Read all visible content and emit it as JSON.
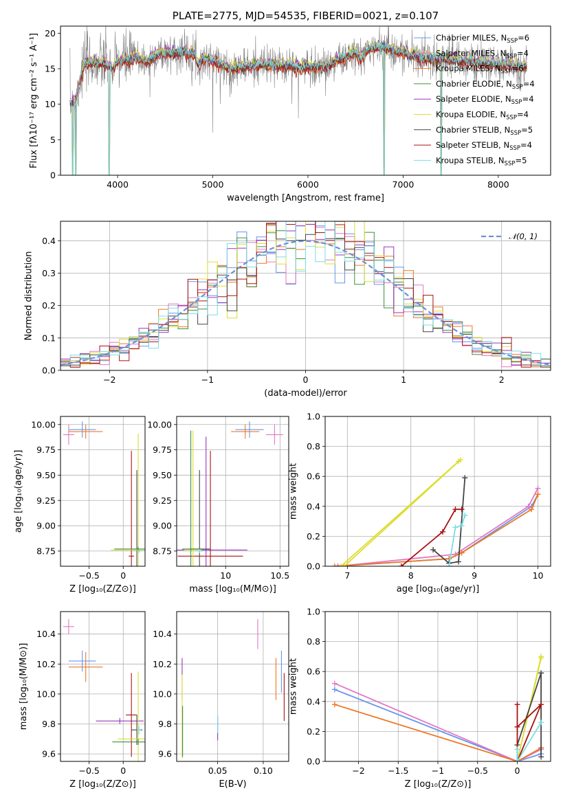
{
  "palette": {
    "Chabrier MILES": "#6495ED",
    "Salpeter MILES": "#E377C2",
    "Kroupa MILES": "#EE7722",
    "Chabrier ELODIE": "#3C8F3C",
    "Salpeter ELODIE": "#9933BB",
    "Kroupa ELODIE": "#DDDD33",
    "Chabrier STELIB": "#444444",
    "Salpeter STELIB": "#AA1111",
    "Kroupa STELIB": "#77DDE7"
  },
  "chart_data": [
    {
      "id": "spectrum",
      "type": "line",
      "title": "PLATE=2775, MJD=54535, FIBERID=0021, z=0.107",
      "xlabel": "wavelength [Angstrom, rest frame]",
      "ylabel": "Flux [fλ10⁻¹⁷ erg cm⁻² s⁻¹ A⁻¹]",
      "xlim": [
        3400,
        8550
      ],
      "ylim": [
        0,
        21
      ],
      "xticks": [
        4000,
        5000,
        6000,
        7000,
        8000
      ],
      "yticks": [
        0,
        5,
        10,
        15,
        20
      ],
      "grid": false,
      "legend_position": "top-right",
      "data": {
        "name": "data",
        "color": "#808080"
      },
      "legend": [
        {
          "name": "Chabrier MILES",
          "label": "Chabrier MILES, N",
          "sub": "SSP",
          "tail": "=6"
        },
        {
          "name": "Salpeter MILES",
          "label": "Salpeter MILES, N",
          "sub": "SSP",
          "tail": "=4"
        },
        {
          "name": "Kroupa MILES",
          "label": "Kroupa MILES, N",
          "sub": "SSP",
          "tail": "=6"
        },
        {
          "name": "Chabrier ELODIE",
          "label": "Chabrier ELODIE, N",
          "sub": "SSP",
          "tail": "=4"
        },
        {
          "name": "Salpeter ELODIE",
          "label": "Salpeter ELODIE, N",
          "sub": "SSP",
          "tail": "=4"
        },
        {
          "name": "Kroupa ELODIE",
          "label": "Kroupa ELODIE, N",
          "sub": "SSP",
          "tail": "=4"
        },
        {
          "name": "Chabrier STELIB",
          "label": "Chabrier STELIB, N",
          "sub": "SSP",
          "tail": "=5"
        },
        {
          "name": "Salpeter STELIB",
          "label": "Salpeter STELIB, N",
          "sub": "SSP",
          "tail": "=4"
        },
        {
          "name": "Kroupa STELIB",
          "label": "Kroupa STELIB, N",
          "sub": "SSP",
          "tail": "=5"
        }
      ],
      "continuum": [
        [
          3500,
          10.2
        ],
        [
          3560,
          10.6
        ],
        [
          3600,
          13.2
        ],
        [
          3650,
          15.8
        ],
        [
          3700,
          15.9
        ],
        [
          3800,
          15.7
        ],
        [
          3900,
          15.6
        ],
        [
          3950,
          14.8
        ],
        [
          4000,
          16.0
        ],
        [
          4100,
          16.2
        ],
        [
          4200,
          16.6
        ],
        [
          4300,
          15.9
        ],
        [
          4400,
          16.9
        ],
        [
          4500,
          17.2
        ],
        [
          4600,
          17.3
        ],
        [
          4700,
          17.4
        ],
        [
          4800,
          17.1
        ],
        [
          4850,
          15.6
        ],
        [
          4900,
          16.4
        ],
        [
          5000,
          16.1
        ],
        [
          5100,
          15.6
        ],
        [
          5180,
          14.9
        ],
        [
          5300,
          15.3
        ],
        [
          5400,
          15.3
        ],
        [
          5500,
          15.6
        ],
        [
          5600,
          15.5
        ],
        [
          5700,
          15.4
        ],
        [
          5800,
          15.5
        ],
        [
          5900,
          15.1
        ],
        [
          6000,
          15.3
        ],
        [
          6100,
          15.2
        ],
        [
          6200,
          15.4
        ],
        [
          6300,
          16.2
        ],
        [
          6400,
          16.5
        ],
        [
          6500,
          17.3
        ],
        [
          6560,
          16.3
        ],
        [
          6600,
          17.6
        ],
        [
          6700,
          17.9
        ],
        [
          6800,
          18.3
        ],
        [
          6900,
          17.5
        ],
        [
          7000,
          17.2
        ],
        [
          7100,
          16.9
        ],
        [
          7200,
          16.6
        ],
        [
          7300,
          16.4
        ],
        [
          7400,
          16.4
        ],
        [
          7500,
          16.4
        ],
        [
          7600,
          16.1
        ],
        [
          7700,
          16.0
        ],
        [
          7800,
          15.8
        ],
        [
          8000,
          15.6
        ],
        [
          8200,
          15.4
        ],
        [
          8300,
          15.3
        ]
      ],
      "model_offsets": [
        0.0,
        0.25,
        -0.2,
        0.1,
        0.3,
        0.4,
        -0.1,
        -0.35,
        0.15
      ],
      "noise_amplitude": 2.4,
      "absorption_spikes": [
        [
          3530,
          0
        ],
        [
          3560,
          0
        ],
        [
          3910,
          0
        ],
        [
          4340,
          11
        ],
        [
          4860,
          15
        ],
        [
          5000,
          6
        ],
        [
          5180,
          11
        ],
        [
          5900,
          8
        ],
        [
          6560,
          14
        ],
        [
          6800,
          0
        ],
        [
          7400,
          0
        ]
      ]
    },
    {
      "id": "residuals",
      "type": "area",
      "xlabel": "(data-model)/error",
      "ylabel": "Normed distribution",
      "xlim": [
        -2.5,
        2.5
      ],
      "ylim": [
        0,
        0.46
      ],
      "xticks": [
        -2,
        -1,
        0,
        1,
        2
      ],
      "yticks": [
        0.0,
        0.1,
        0.2,
        0.3,
        0.4
      ],
      "grid": true,
      "legend_position": "top-right",
      "legend_label": "𝒩(0, 1)",
      "reference": {
        "name": "N(0,1)",
        "mu": 0,
        "sigma": 1,
        "color": "#6A8FD8",
        "style": "dashed"
      },
      "bin_width": 0.1
    },
    {
      "id": "z-age",
      "type": "scatter",
      "xlabel": "Z [log₁₀(Z/Z⊙)]",
      "ylabel": "age  [log₁₀(age/yr)]",
      "xlim": [
        -0.92,
        0.32
      ],
      "ylim": [
        8.6,
        10.08
      ],
      "xticks": [
        -0.5,
        0.0
      ],
      "yticks": [
        8.75,
        9.0,
        9.25,
        9.5,
        9.75,
        10.0
      ],
      "grid": true,
      "points": [
        {
          "name": "Salpeter MILES",
          "x": -0.8,
          "y": 9.9,
          "xerr": 0.08,
          "yerr": 0.1
        },
        {
          "name": "Chabrier MILES",
          "x": -0.6,
          "y": 9.95,
          "xerr": 0.2,
          "yerr": 0.08
        },
        {
          "name": "Kroupa MILES",
          "x": -0.55,
          "y": 9.93,
          "xerr": 0.25,
          "yerr": 0.07
        },
        {
          "name": "Salpeter STELIB",
          "x": 0.12,
          "y": 8.7,
          "xerr": 0.04,
          "yerr": 1.04
        },
        {
          "name": "Chabrier STELIB",
          "x": 0.2,
          "y": 8.77,
          "xerr": 0.03,
          "yerr": 0.78
        },
        {
          "name": "Kroupa ELODIE",
          "x": 0.22,
          "y": 8.76,
          "xerr": 0.4,
          "yerr": 1.15
        },
        {
          "name": "Chabrier ELODIE",
          "x": 0.22,
          "y": 8.77,
          "xerr": 0.35,
          "yerr": 0.02
        },
        {
          "name": "Kroupa STELIB",
          "x": 0.23,
          "y": 8.75,
          "xerr": 0.03,
          "yerr": 0.02
        }
      ]
    },
    {
      "id": "mass-age",
      "type": "scatter",
      "xlabel": "mass [log₁₀(M/M⊙)]",
      "ylabel": "",
      "xlim": [
        9.55,
        10.58
      ],
      "ylim": [
        8.6,
        10.08
      ],
      "xticks": [
        10.0,
        10.5
      ],
      "yticks": [
        8.75,
        9.0,
        9.25,
        9.5,
        9.75,
        10.0
      ],
      "grid": true,
      "points": [
        {
          "name": "Salpeter MILES",
          "x": 10.45,
          "y": 9.9,
          "xerr": 0.08,
          "yerr": 0.1
        },
        {
          "name": "Chabrier MILES",
          "x": 10.22,
          "y": 9.95,
          "xerr": 0.13,
          "yerr": 0.08
        },
        {
          "name": "Kroupa MILES",
          "x": 10.18,
          "y": 9.93,
          "xerr": 0.13,
          "yerr": 0.07
        },
        {
          "name": "Salpeter ELODIE",
          "x": 9.82,
          "y": 8.76,
          "xerr": 0.38,
          "yerr": 1.12
        },
        {
          "name": "Salpeter STELIB",
          "x": 9.86,
          "y": 8.7,
          "xerr": 0.3,
          "yerr": 1.04
        },
        {
          "name": "Chabrier STELIB",
          "x": 9.76,
          "y": 8.77,
          "xerr": 0.1,
          "yerr": 0.78
        },
        {
          "name": "Kroupa ELODIE",
          "x": 9.7,
          "y": 8.76,
          "xerr": 0.08,
          "yerr": 1.18
        },
        {
          "name": "Chabrier ELODIE",
          "x": 9.68,
          "y": 8.77,
          "xerr": 0.08,
          "yerr": 1.17
        },
        {
          "name": "Kroupa STELIB",
          "x": 9.76,
          "y": 8.75,
          "xerr": 0.04,
          "yerr": 0.02
        }
      ]
    },
    {
      "id": "age-weight",
      "type": "line",
      "xlabel": "age  [log₁₀(age/yr)]",
      "ylabel": "mass weight",
      "xlim": [
        6.65,
        10.2
      ],
      "ylim": [
        0,
        1.0
      ],
      "xticks": [
        7,
        8,
        9,
        10
      ],
      "yticks": [
        0.0,
        0.2,
        0.4,
        0.6,
        0.8,
        1.0
      ],
      "grid": true,
      "series": [
        {
          "name": "Chabrier MILES",
          "x": [
            6.85,
            8.6,
            8.8,
            9.9,
            10.0
          ],
          "y": [
            0.0,
            0.05,
            0.09,
            0.4,
            0.48
          ]
        },
        {
          "name": "Salpeter MILES",
          "x": [
            6.85,
            8.7,
            9.85,
            10.0
          ],
          "y": [
            0.0,
            0.08,
            0.4,
            0.52
          ]
        },
        {
          "name": "Kroupa MILES",
          "x": [
            6.8,
            8.6,
            8.8,
            9.9,
            10.0
          ],
          "y": [
            0.0,
            0.05,
            0.09,
            0.38,
            0.48
          ]
        },
        {
          "name": "Kroupa ELODIE",
          "x": [
            6.9,
            8.75,
            8.78,
            6.95
          ],
          "y": [
            0.0,
            0.7,
            0.71,
            0.0
          ]
        },
        {
          "name": "Chabrier STELIB",
          "x": [
            8.35,
            8.6,
            8.75,
            8.85
          ],
          "y": [
            0.11,
            0.02,
            0.03,
            0.59
          ]
        },
        {
          "name": "Salpeter STELIB",
          "x": [
            7.85,
            8.5,
            8.7,
            8.8
          ],
          "y": [
            0.0,
            0.23,
            0.38,
            0.38
          ]
        },
        {
          "name": "Kroupa STELIB",
          "x": [
            8.6,
            8.7,
            8.8,
            8.85
          ],
          "y": [
            0.0,
            0.26,
            0.27,
            0.34
          ]
        }
      ]
    },
    {
      "id": "z-mass",
      "type": "scatter",
      "xlabel": "Z [log₁₀(Z/Z⊙)]",
      "ylabel": "mass [log₁₀(M/M⊙)]",
      "xlim": [
        -0.92,
        0.32
      ],
      "ylim": [
        9.55,
        10.55
      ],
      "xticks": [
        -0.5,
        0.0
      ],
      "yticks": [
        9.6,
        9.8,
        10.0,
        10.2,
        10.4
      ],
      "grid": true,
      "points": [
        {
          "name": "Salpeter MILES",
          "x": -0.8,
          "y": 10.45,
          "xerr": 0.08,
          "yerr": 0.05
        },
        {
          "name": "Chabrier MILES",
          "x": -0.6,
          "y": 10.22,
          "xerr": 0.2,
          "yerr": 0.07
        },
        {
          "name": "Kroupa MILES",
          "x": -0.55,
          "y": 10.18,
          "xerr": 0.25,
          "yerr": 0.1
        },
        {
          "name": "Salpeter ELODIE",
          "x": -0.05,
          "y": 9.82,
          "xerr": 0.35,
          "yerr": 0.02
        },
        {
          "name": "Salpeter STELIB",
          "x": 0.12,
          "y": 9.86,
          "xerr": 0.08,
          "yerr": 0.28
        },
        {
          "name": "Chabrier STELIB",
          "x": 0.2,
          "y": 9.76,
          "xerr": 0.08,
          "yerr": 0.1
        },
        {
          "name": "Kroupa ELODIE",
          "x": 0.22,
          "y": 9.7,
          "xerr": 0.3,
          "yerr": 0.45
        },
        {
          "name": "Chabrier ELODIE",
          "x": 0.22,
          "y": 9.68,
          "xerr": 0.38,
          "yerr": 0.02
        },
        {
          "name": "Kroupa STELIB",
          "x": 0.23,
          "y": 9.76,
          "xerr": 0.03,
          "yerr": 0.03
        }
      ]
    },
    {
      "id": "ebv-mass",
      "type": "scatter",
      "xlabel": "E(B-V)",
      "ylabel": "",
      "xlim": [
        0.005,
        0.128
      ],
      "ylim": [
        9.55,
        10.55
      ],
      "xticks": [
        0.05,
        0.1
      ],
      "yticks": [
        9.6,
        9.8,
        10.0,
        10.2,
        10.4
      ],
      "grid": true,
      "points": [
        {
          "name": "Salpeter MILES",
          "x": 0.094,
          "y": 10.4,
          "xerr": 0.0,
          "yerr": 0.1
        },
        {
          "name": "Chabrier MILES",
          "x": 0.12,
          "y": 10.15,
          "xerr": 0.0,
          "yerr": 0.14
        },
        {
          "name": "Kroupa MILES",
          "x": 0.114,
          "y": 10.1,
          "xerr": 0.0,
          "yerr": 0.14
        },
        {
          "name": "Salpeter STELIB",
          "x": 0.123,
          "y": 9.98,
          "xerr": 0.0,
          "yerr": 0.16
        },
        {
          "name": "Salpeter ELODIE",
          "x": 0.05,
          "y": 9.77,
          "xerr": 0.0,
          "yerr": 0.08
        },
        {
          "name": "Kroupa STELIB",
          "x": 0.05,
          "y": 9.8,
          "xerr": 0.0,
          "yerr": 0.06
        },
        {
          "name": "Salpeter ELODIE",
          "x": 0.011,
          "y": 10.1,
          "xerr": 0.0,
          "yerr": 0.14
        },
        {
          "name": "Kroupa ELODIE",
          "x": 0.011,
          "y": 9.85,
          "xerr": 0.0,
          "yerr": 0.28
        },
        {
          "name": "Chabrier ELODIE",
          "x": 0.0115,
          "y": 9.75,
          "xerr": 0.0,
          "yerr": 0.17
        }
      ]
    },
    {
      "id": "z-weight",
      "type": "line",
      "xlabel": "Z [log₁₀(Z/Z⊙)]",
      "ylabel": "mass weight",
      "xlim": [
        -2.42,
        0.42
      ],
      "ylim": [
        0,
        1.0
      ],
      "xticks": [
        -2.0,
        -1.5,
        -1.0,
        -0.5,
        0.0
      ],
      "yticks": [
        0.0,
        0.2,
        0.4,
        0.6,
        0.8,
        1.0
      ],
      "grid": true,
      "series": [
        {
          "name": "Chabrier MILES",
          "x": [
            -2.3,
            0.0,
            0.3,
            0.3
          ],
          "y": [
            0.48,
            0.0,
            0.05,
            0.09
          ]
        },
        {
          "name": "Salpeter MILES",
          "x": [
            -2.3,
            0.0,
            0.3
          ],
          "y": [
            0.52,
            0.0,
            0.08
          ]
        },
        {
          "name": "Kroupa MILES",
          "x": [
            -2.3,
            0.0,
            0.3
          ],
          "y": [
            0.38,
            0.0,
            0.09
          ]
        },
        {
          "name": "Kroupa ELODIE",
          "x": [
            0.0,
            0.3,
            0.3,
            0.0
          ],
          "y": [
            0.0,
            0.7,
            0.69,
            0.0
          ]
        },
        {
          "name": "Chabrier STELIB",
          "x": [
            0.0,
            0.3,
            0.3
          ],
          "y": [
            0.11,
            0.59,
            0.03
          ]
        },
        {
          "name": "Salpeter STELIB",
          "x": [
            0.0,
            0.0,
            0.3,
            0.0
          ],
          "y": [
            0.38,
            0.0,
            0.38,
            0.23
          ]
        },
        {
          "name": "Kroupa STELIB",
          "x": [
            0.0,
            0.0,
            0.3
          ],
          "y": [
            0.08,
            0.0,
            0.26
          ]
        }
      ]
    }
  ]
}
